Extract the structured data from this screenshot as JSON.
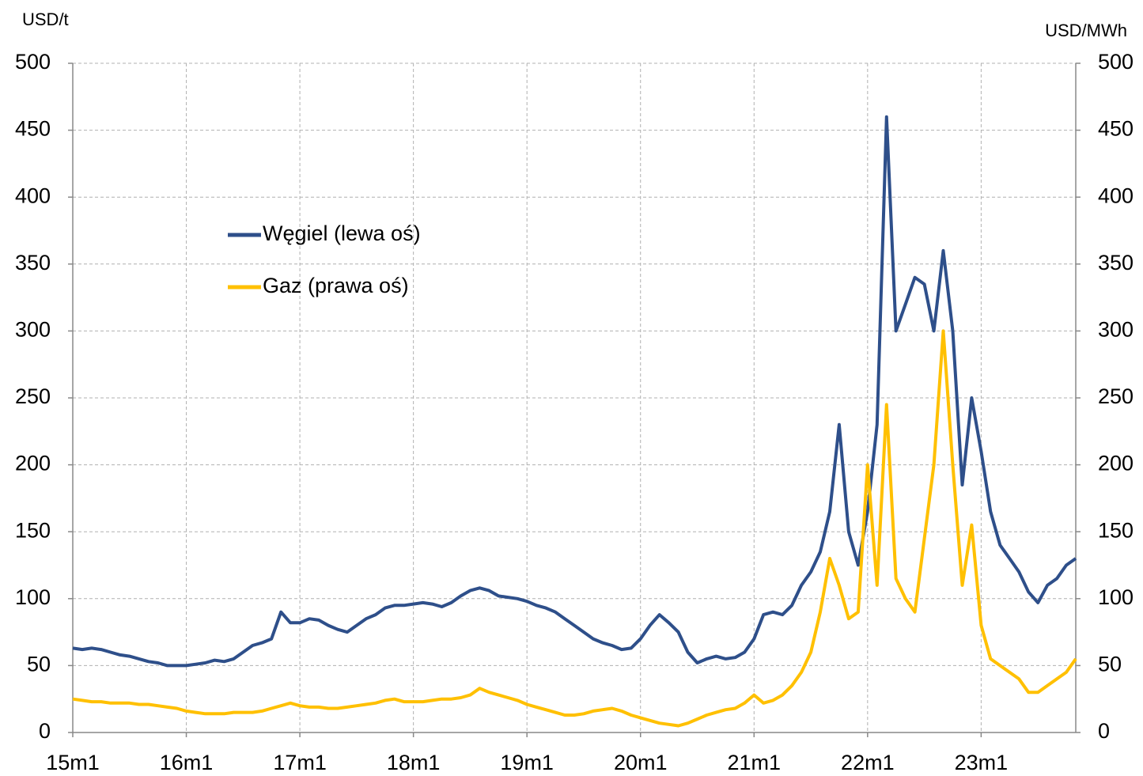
{
  "chart_data": {
    "type": "line",
    "y_label": "USD/t",
    "y2_label": "USD/MWh",
    "categories": [
      "15m1",
      null,
      null,
      null,
      null,
      null,
      null,
      null,
      null,
      null,
      null,
      null,
      "16m1",
      null,
      null,
      null,
      null,
      null,
      null,
      null,
      null,
      null,
      null,
      null,
      "17m1",
      null,
      null,
      null,
      null,
      null,
      null,
      null,
      null,
      null,
      null,
      null,
      "18m1",
      null,
      null,
      null,
      null,
      null,
      null,
      null,
      null,
      null,
      null,
      null,
      "19m1",
      null,
      null,
      null,
      null,
      null,
      null,
      null,
      null,
      null,
      null,
      null,
      "20m1",
      null,
      null,
      null,
      null,
      null,
      null,
      null,
      null,
      null,
      null,
      null,
      "21m1",
      null,
      null,
      null,
      null,
      null,
      null,
      null,
      null,
      null,
      null,
      null,
      "22m1",
      null,
      null,
      null,
      null,
      null,
      null,
      null,
      null,
      null,
      null,
      null,
      "23m1",
      null,
      null,
      null,
      null,
      null,
      null,
      null,
      null,
      null,
      null
    ],
    "series": [
      {
        "name": "Węgiel (lewa oś)",
        "color": "#2e4f8a",
        "values": [
          63,
          62,
          63,
          62,
          60,
          58,
          57,
          55,
          53,
          52,
          50,
          50,
          50,
          51,
          52,
          54,
          53,
          55,
          60,
          65,
          67,
          70,
          90,
          82,
          82,
          85,
          84,
          80,
          77,
          75,
          80,
          85,
          88,
          93,
          95,
          95,
          96,
          97,
          96,
          94,
          97,
          102,
          106,
          108,
          106,
          102,
          101,
          100,
          98,
          95,
          93,
          90,
          85,
          80,
          75,
          70,
          67,
          65,
          62,
          63,
          70,
          80,
          88,
          82,
          75,
          60,
          52,
          55,
          57,
          55,
          56,
          60,
          70,
          88,
          90,
          88,
          95,
          110,
          120,
          135,
          165,
          230,
          150,
          125,
          165,
          230,
          460,
          300,
          320,
          340,
          335,
          300,
          360,
          300,
          185,
          250,
          210,
          165,
          140,
          130,
          120,
          105,
          97,
          110,
          115,
          125,
          130
        ]
      },
      {
        "name": "Gaz (prawa oś)",
        "color": "#ffc000",
        "axis": "y2",
        "values": [
          25,
          24,
          23,
          23,
          22,
          22,
          22,
          21,
          21,
          20,
          19,
          18,
          16,
          15,
          14,
          14,
          14,
          15,
          15,
          15,
          16,
          18,
          20,
          22,
          20,
          19,
          19,
          18,
          18,
          19,
          20,
          21,
          22,
          24,
          25,
          23,
          23,
          23,
          24,
          25,
          25,
          26,
          28,
          33,
          30,
          28,
          26,
          24,
          21,
          19,
          17,
          15,
          13,
          13,
          14,
          16,
          17,
          18,
          16,
          13,
          11,
          9,
          7,
          6,
          5,
          7,
          10,
          13,
          15,
          17,
          18,
          22,
          28,
          22,
          24,
          28,
          35,
          45,
          60,
          90,
          130,
          110,
          85,
          90,
          200,
          110,
          245,
          115,
          100,
          90,
          145,
          200,
          300,
          200,
          110,
          155,
          80,
          55,
          50,
          45,
          40,
          30,
          30,
          35,
          40,
          45,
          55
        ]
      }
    ],
    "ylim": [
      0,
      500
    ],
    "yticks": [
      0,
      50,
      100,
      150,
      200,
      250,
      300,
      350,
      400,
      450,
      500
    ],
    "y2lim": [
      0,
      500
    ],
    "y2ticks": [
      0,
      50,
      100,
      150,
      200,
      250,
      300,
      350,
      400,
      450,
      500
    ],
    "grid": true,
    "legend": "upper left"
  }
}
